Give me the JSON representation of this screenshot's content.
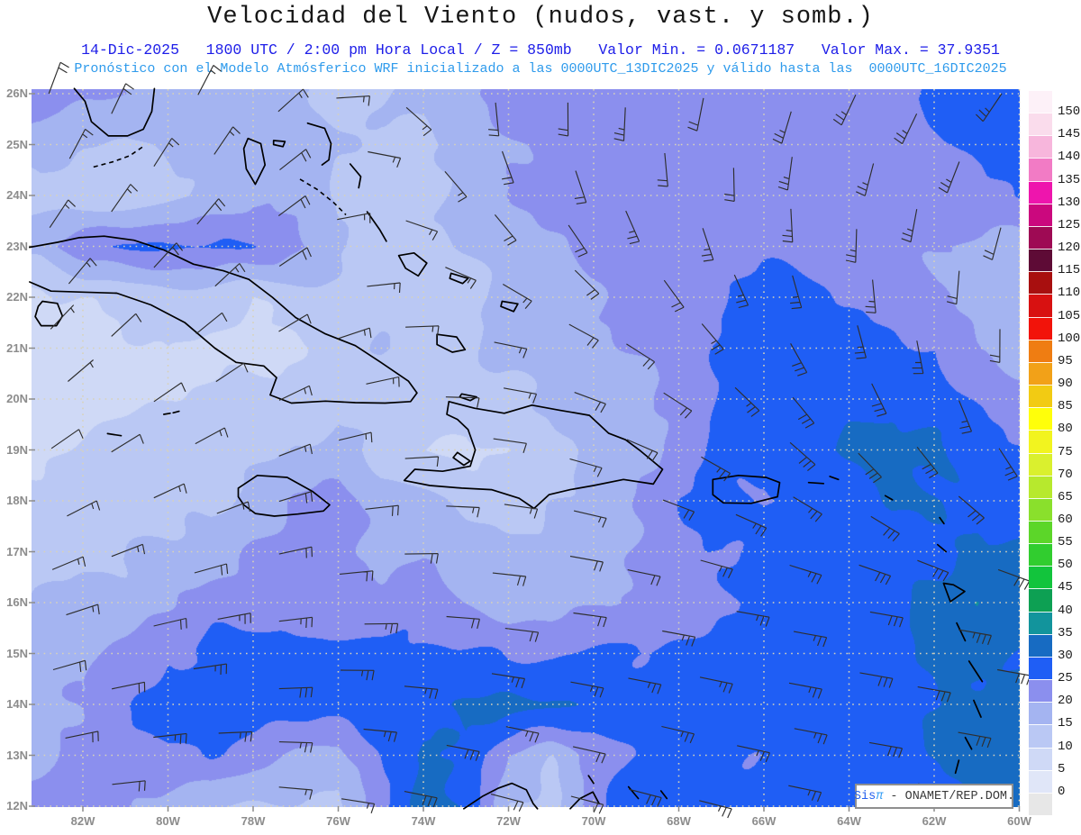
{
  "title": "Velocidad del Viento (nudos, vast. y somb.)",
  "subtitle": "14-Dic-2025   1800 UTC / 2:00 pm Hora Local / Z = 850mb   Valor Min. = 0.0671187   Valor Max. = 37.9351",
  "forecast_line": "Pronóstico con el Modelo Atmósferico WRF inicializado a las 0000UTC_13DIC2025 y válido hasta las  0000UTC_16DIC2025",
  "credit": {
    "brand": "Sis",
    "symbol": "π",
    "text": " - ONAMET/REP.DOM."
  },
  "colors": {
    "title_text": "#161616",
    "subtitle_text": "#1d1de8",
    "forecast_text": "#2f9bec",
    "axis_label": "#8c8c8c",
    "grid_dots": "#d8d2b8",
    "coastline": "#000000",
    "barb": "#2e2e2e"
  },
  "chart_data": {
    "type": "heatmap",
    "title": "Velocidad del Viento (nudos, vast. y somb.)",
    "variable": "wind speed at 850mb",
    "units": "knots",
    "value_min": 0.0671187,
    "value_max": 37.9351,
    "level": "850mb",
    "valid_time": "14-Dic-2025 1800 UTC / 2:00 pm Hora Local",
    "model_run": "0000UTC_13DIC2025",
    "valid_until": "0000UTC_16DIC2025",
    "lon_range_w": [
      83,
      60
    ],
    "lat_range_n": [
      26,
      12
    ],
    "grid_lons_w": [
      83,
      82,
      81,
      80,
      79,
      78,
      77,
      76,
      75,
      74,
      73,
      72,
      71,
      70,
      69,
      68,
      67,
      66,
      65,
      64,
      63,
      62,
      61,
      60
    ],
    "grid_lats_n": [
      26,
      25,
      24,
      23,
      22,
      21,
      20,
      19,
      18,
      17,
      16,
      15,
      14,
      13,
      12
    ],
    "speed_grid_kt": [
      [
        22,
        21,
        20,
        18,
        17,
        16,
        15,
        14,
        15,
        17,
        19,
        21,
        22,
        23,
        24,
        22,
        22,
        22,
        23,
        23,
        24,
        26,
        28,
        26
      ],
      [
        19,
        15,
        13,
        16,
        17,
        17,
        19,
        16,
        14,
        14,
        16,
        19,
        22,
        22,
        23,
        22,
        22,
        23,
        23,
        23,
        24,
        24,
        26,
        27
      ],
      [
        13,
        11,
        12,
        14,
        16,
        19,
        18,
        13,
        12,
        13,
        17,
        21,
        22,
        21,
        23,
        22,
        22,
        22,
        23,
        23,
        23,
        23,
        24,
        24
      ],
      [
        17,
        24,
        26,
        26,
        26,
        25,
        21,
        16,
        13,
        14,
        16,
        18,
        20,
        22,
        23,
        23,
        24,
        24,
        24,
        23,
        22,
        21,
        19,
        18
      ],
      [
        8,
        10,
        12,
        13,
        12,
        10,
        12,
        13,
        12,
        13,
        14,
        17,
        18,
        20,
        22,
        22,
        25,
        27,
        26,
        25,
        23,
        21,
        19,
        18
      ],
      [
        6,
        6,
        8,
        10,
        8,
        8,
        10,
        13,
        15,
        13,
        13,
        17,
        18,
        18,
        21,
        23,
        26,
        28,
        28,
        28,
        26,
        24,
        20,
        19
      ],
      [
        8,
        8,
        8,
        10,
        12,
        13,
        13,
        14,
        13,
        12,
        12,
        13,
        17,
        18,
        18,
        22,
        26,
        28,
        28,
        28,
        28,
        27,
        24,
        22
      ],
      [
        10,
        10,
        12,
        13,
        13,
        14,
        16,
        17,
        13,
        10,
        8,
        10,
        13,
        17,
        18,
        22,
        27,
        28,
        28,
        30,
        32,
        31,
        28,
        27
      ],
      [
        12,
        13,
        14,
        13,
        14,
        17,
        20,
        22,
        18,
        17,
        14,
        13,
        15,
        17,
        20,
        24,
        27,
        24,
        26,
        28,
        31,
        31,
        30,
        28
      ],
      [
        13,
        14,
        15,
        17,
        18,
        21,
        22,
        22,
        20,
        20,
        18,
        17,
        17,
        18,
        20,
        23,
        26,
        27,
        28,
        28,
        28,
        28,
        31,
        31
      ],
      [
        15,
        17,
        18,
        20,
        22,
        22,
        22,
        22,
        21,
        22,
        20,
        18,
        18,
        20,
        21,
        22,
        24,
        26,
        27,
        28,
        28,
        33,
        36,
        31
      ],
      [
        17,
        18,
        20,
        24,
        26,
        27,
        27,
        27,
        26,
        26,
        25,
        24,
        24,
        25,
        26,
        27,
        27,
        27,
        28,
        28,
        28,
        31,
        31,
        31
      ],
      [
        18,
        20,
        24,
        30,
        27,
        28,
        28,
        28,
        27,
        28,
        31,
        32,
        31,
        28,
        27,
        27,
        26,
        26,
        27,
        28,
        28,
        29,
        31,
        32
      ],
      [
        20,
        21,
        22,
        24,
        26,
        22,
        20,
        18,
        26,
        31,
        28,
        20,
        16,
        22,
        26,
        27,
        27,
        26,
        26,
        27,
        28,
        31,
        32,
        34
      ],
      [
        22,
        22,
        22,
        18,
        16,
        15,
        14,
        13,
        24,
        32,
        30,
        16,
        13,
        24,
        30,
        28,
        27,
        26,
        26,
        26,
        27,
        28,
        30,
        32
      ]
    ],
    "wind_dir_from_deg": {
      "lons_w": [
        83,
        78,
        73,
        68,
        64,
        60
      ],
      "lats_n": [
        26,
        21,
        16,
        12
      ],
      "values": [
        [
          20,
          30,
          175,
          190,
          205,
          215
        ],
        [
          45,
          55,
          95,
          130,
          160,
          180
        ],
        [
          70,
          80,
          95,
          100,
          100,
          100
        ],
        [
          80,
          95,
          105,
          105,
          100,
          100
        ]
      ]
    },
    "axes": {
      "lat_ticks": [
        "26N",
        "25N",
        "24N",
        "23N",
        "22N",
        "21N",
        "20N",
        "19N",
        "18N",
        "17N",
        "16N",
        "15N",
        "14N",
        "13N",
        "12N"
      ],
      "lon_ticks": [
        "82W",
        "80W",
        "78W",
        "76W",
        "74W",
        "72W",
        "70W",
        "68W",
        "66W",
        "64W",
        "62W",
        "60W"
      ],
      "lat_grid_every_deg": 1,
      "lon_grid_every_deg": 2
    },
    "colorbar": {
      "ticks": [
        0,
        5,
        10,
        15,
        20,
        25,
        30,
        35,
        40,
        45,
        50,
        55,
        60,
        65,
        70,
        75,
        80,
        85,
        90,
        95,
        100,
        105,
        110,
        115,
        120,
        125,
        130,
        135,
        140,
        145,
        150
      ],
      "colors_bottom_to_top": [
        "#e7e7e7",
        "#e0e6f8",
        "#cfd9f6",
        "#bac8f4",
        "#a4b4f1",
        "#8b8fee",
        "#1f5ef5",
        "#176bc2",
        "#12949c",
        "#0da053",
        "#12c43c",
        "#31cd2f",
        "#5cd629",
        "#8ae02c",
        "#b7e92d",
        "#daf02e",
        "#f2f41f",
        "#ffff0a",
        "#f2cb13",
        "#f2a118",
        "#ef7d12",
        "#f2130a",
        "#d81111",
        "#a80f0f",
        "#5e0b36",
        "#9e0a54",
        "#cb087e",
        "#ee15ad",
        "#f27bc5",
        "#f7b6dc",
        "#fadcec",
        "#fdf1f8"
      ]
    },
    "legend_position": "right"
  },
  "map": {
    "coastlines_closed": [
      [
        [
          82.95,
          21.92
        ],
        [
          82.6,
          21.88
        ],
        [
          82.48,
          21.63
        ],
        [
          82.62,
          21.44
        ],
        [
          82.98,
          21.44
        ],
        [
          83.12,
          21.62
        ],
        [
          83.05,
          21.82
        ]
      ],
      [
        [
          78.35,
          18.25
        ],
        [
          77.9,
          18.5
        ],
        [
          77.2,
          18.46
        ],
        [
          76.6,
          18.18
        ],
        [
          76.2,
          17.92
        ],
        [
          76.35,
          17.8
        ],
        [
          76.95,
          17.74
        ],
        [
          77.5,
          17.7
        ],
        [
          77.95,
          17.75
        ],
        [
          78.22,
          17.92
        ],
        [
          78.35,
          18.08
        ]
      ],
      [
        [
          73.4,
          19.95
        ],
        [
          72.8,
          19.82
        ],
        [
          72.1,
          19.72
        ],
        [
          71.45,
          19.88
        ],
        [
          70.8,
          19.78
        ],
        [
          70.1,
          19.68
        ],
        [
          69.65,
          19.33
        ],
        [
          69.25,
          19.2
        ],
        [
          68.9,
          18.98
        ],
        [
          68.38,
          18.62
        ],
        [
          68.6,
          18.33
        ],
        [
          69.3,
          18.42
        ],
        [
          70.0,
          18.3
        ],
        [
          70.55,
          18.22
        ],
        [
          71.05,
          18.12
        ],
        [
          71.4,
          17.85
        ],
        [
          71.75,
          18.05
        ],
        [
          72.4,
          18.22
        ],
        [
          73.1,
          18.25
        ],
        [
          73.85,
          18.3
        ],
        [
          74.45,
          18.4
        ],
        [
          74.2,
          18.62
        ],
        [
          73.55,
          18.58
        ],
        [
          72.9,
          18.68
        ],
        [
          72.78,
          19.0
        ],
        [
          72.95,
          19.4
        ],
        [
          73.2,
          19.6
        ],
        [
          73.45,
          19.7
        ]
      ],
      [
        [
          73.2,
          18.95
        ],
        [
          72.9,
          18.78
        ],
        [
          73.05,
          18.7
        ],
        [
          73.3,
          18.85
        ]
      ],
      [
        [
          73.1,
          20.1
        ],
        [
          72.75,
          20.04
        ],
        [
          72.9,
          19.97
        ],
        [
          73.15,
          20.04
        ]
      ],
      [
        [
          67.2,
          18.42
        ],
        [
          66.6,
          18.5
        ],
        [
          65.95,
          18.46
        ],
        [
          65.63,
          18.36
        ],
        [
          65.68,
          18.08
        ],
        [
          66.3,
          17.95
        ],
        [
          66.95,
          17.96
        ],
        [
          67.2,
          18.12
        ]
      ],
      [
        [
          78.12,
          25.12
        ],
        [
          77.82,
          25.02
        ],
        [
          77.72,
          24.6
        ],
        [
          77.95,
          24.22
        ],
        [
          78.16,
          24.52
        ],
        [
          78.22,
          24.92
        ]
      ],
      [
        [
          77.52,
          25.08
        ],
        [
          77.25,
          25.06
        ],
        [
          77.3,
          24.96
        ],
        [
          77.52,
          25.0
        ]
      ],
      [
        [
          74.58,
          22.82
        ],
        [
          74.22,
          22.87
        ],
        [
          73.92,
          22.67
        ],
        [
          74.12,
          22.42
        ],
        [
          74.42,
          22.57
        ]
      ],
      [
        [
          73.35,
          22.47
        ],
        [
          72.95,
          22.37
        ],
        [
          73.08,
          22.27
        ],
        [
          73.38,
          22.37
        ]
      ],
      [
        [
          73.68,
          21.27
        ],
        [
          73.22,
          21.22
        ],
        [
          73.02,
          20.97
        ],
        [
          73.32,
          20.92
        ],
        [
          73.68,
          21.07
        ]
      ],
      [
        [
          72.15,
          21.92
        ],
        [
          71.78,
          21.87
        ],
        [
          71.88,
          21.72
        ],
        [
          72.18,
          21.82
        ]
      ],
      [
        [
          61.78,
          16.38
        ],
        [
          61.62,
          16.02
        ],
        [
          61.28,
          16.22
        ],
        [
          61.55,
          16.35
        ]
      ]
    ],
    "coastlines_open": [
      [
        [
          83.25,
          22.98
        ],
        [
          82.6,
          23.08
        ],
        [
          82.1,
          23.17
        ],
        [
          81.5,
          23.2
        ],
        [
          80.8,
          23.12
        ],
        [
          80.1,
          22.93
        ],
        [
          79.4,
          22.65
        ],
        [
          78.7,
          22.52
        ],
        [
          78.1,
          22.35
        ],
        [
          77.55,
          22.0
        ],
        [
          77.0,
          21.6
        ],
        [
          76.3,
          21.28
        ],
        [
          75.6,
          21.05
        ],
        [
          75.0,
          20.72
        ],
        [
          74.35,
          20.35
        ],
        [
          74.15,
          20.12
        ],
        [
          74.3,
          19.95
        ],
        [
          74.9,
          19.92
        ],
        [
          75.6,
          19.93
        ],
        [
          76.3,
          19.96
        ],
        [
          77.1,
          19.92
        ],
        [
          77.6,
          20.08
        ],
        [
          77.45,
          20.42
        ],
        [
          77.75,
          20.65
        ],
        [
          78.4,
          20.72
        ],
        [
          78.9,
          21.0
        ],
        [
          79.6,
          21.5
        ],
        [
          80.4,
          21.85
        ],
        [
          81.2,
          22.08
        ],
        [
          82.0,
          22.1
        ],
        [
          82.75,
          22.12
        ],
        [
          83.25,
          22.3
        ]
      ],
      [
        [
          82.2,
          26.1
        ],
        [
          81.95,
          25.85
        ],
        [
          81.8,
          25.45
        ],
        [
          81.4,
          25.17
        ],
        [
          80.95,
          25.17
        ],
        [
          80.58,
          25.3
        ],
        [
          80.38,
          25.65
        ],
        [
          80.32,
          26.1
        ]
      ],
      [
        [
          76.72,
          25.42
        ],
        [
          76.32,
          25.32
        ],
        [
          76.17,
          25.02
        ],
        [
          76.22,
          24.7
        ],
        [
          76.38,
          24.6
        ]
      ],
      [
        [
          75.72,
          24.62
        ],
        [
          75.47,
          24.37
        ],
        [
          75.52,
          24.15
        ]
      ],
      [
        [
          75.32,
          23.68
        ],
        [
          75.02,
          23.32
        ],
        [
          74.87,
          23.1
        ]
      ],
      [
        [
          81.42,
          19.32
        ],
        [
          81.1,
          19.28
        ]
      ],
      [
        [
          80.1,
          19.7
        ],
        [
          79.95,
          19.72
        ]
      ],
      [
        [
          79.88,
          19.73
        ],
        [
          79.74,
          19.76
        ]
      ],
      [
        [
          63.15,
          18.1
        ],
        [
          62.98,
          18.02
        ]
      ],
      [
        [
          61.87,
          17.67
        ],
        [
          61.77,
          17.55
        ]
      ],
      [
        [
          61.92,
          17.14
        ],
        [
          61.72,
          17.0
        ]
      ],
      [
        [
          61.47,
          15.6
        ],
        [
          61.27,
          15.25
        ]
      ],
      [
        [
          61.18,
          14.85
        ],
        [
          60.87,
          14.45
        ]
      ],
      [
        [
          61.07,
          14.08
        ],
        [
          60.9,
          13.75
        ]
      ],
      [
        [
          61.27,
          13.35
        ],
        [
          61.12,
          13.12
        ]
      ],
      [
        [
          61.42,
          12.9
        ],
        [
          61.5,
          12.65
        ]
      ],
      [
        [
          61.78,
          12.2
        ],
        [
          61.62,
          12.0
        ]
      ],
      [
        [
          64.95,
          18.36
        ],
        [
          64.6,
          18.34
        ]
      ],
      [
        [
          64.45,
          18.48
        ],
        [
          64.25,
          18.42
        ]
      ],
      [
        [
          73.05,
          11.95
        ],
        [
          72.6,
          12.2
        ],
        [
          72.25,
          12.35
        ],
        [
          71.92,
          12.45
        ],
        [
          71.58,
          12.32
        ],
        [
          71.42,
          12.05
        ],
        [
          71.32,
          11.95
        ]
      ],
      [
        [
          70.55,
          11.95
        ],
        [
          70.32,
          12.15
        ],
        [
          70.02,
          12.28
        ],
        [
          69.87,
          12.05
        ]
      ],
      [
        [
          70.12,
          12.6
        ],
        [
          70.0,
          12.45
        ]
      ],
      [
        [
          69.18,
          12.38
        ],
        [
          68.95,
          12.15
        ]
      ],
      [
        [
          68.42,
          12.3
        ],
        [
          68.28,
          12.15
        ]
      ]
    ],
    "coastlines_dashed": [
      [
        [
          81.75,
          24.56
        ],
        [
          81.3,
          24.66
        ],
        [
          80.9,
          24.78
        ],
        [
          80.55,
          24.98
        ]
      ],
      [
        [
          76.9,
          24.32
        ],
        [
          76.5,
          24.12
        ],
        [
          76.12,
          23.87
        ],
        [
          75.82,
          23.62
        ]
      ]
    ]
  }
}
